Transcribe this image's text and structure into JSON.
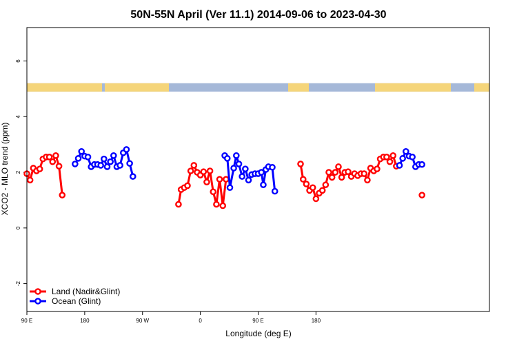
{
  "chart_data": {
    "type": "line",
    "title": "50N-55N April (Ver 11.1)   2014-09-06 to 2023-04-30",
    "xlabel": "Longitude (deg E)",
    "ylabel": "XCO2 - MLO trend (ppm)",
    "xlim": [
      90,
      450
    ],
    "ylim": [
      -3,
      7.2
    ],
    "x_ticks": [
      {
        "value": 90,
        "label": "90 E"
      },
      {
        "value": 135,
        "label": "180"
      },
      {
        "value": 180,
        "label": "90 W"
      },
      {
        "value": 225,
        "label": "0"
      },
      {
        "value": 270,
        "label": "90 E"
      },
      {
        "value": 315,
        "label": "180"
      }
    ],
    "x_tick_scale_note": "",
    "y_ticks": [
      -2,
      0,
      2,
      4,
      6
    ],
    "legend_position": "bottom-left",
    "land_ocean_strip": {
      "y_range": [
        4.9,
        5.2
      ],
      "land_color": "#f5d57a",
      "ocean_color": "#a5b8d8"
    },
    "series": [
      {
        "name": "Land (Nadir&Glint)",
        "color": "#ff0000",
        "segments": [
          [
            [
              90,
              1.95
            ],
            [
              92.5,
              1.72
            ],
            [
              95,
              2.15
            ],
            [
              97.5,
              2.05
            ],
            [
              100,
              2.12
            ],
            [
              102.5,
              2.48
            ],
            [
              105,
              2.55
            ],
            [
              107.5,
              2.55
            ],
            [
              110,
              2.38
            ],
            [
              112.5,
              2.6
            ],
            [
              115,
              2.22
            ],
            [
              117.5,
              1.18
            ]
          ],
          [
            [
              208,
              0.85
            ],
            [
              210,
              1.38
            ],
            [
              212.5,
              1.45
            ],
            [
              215,
              1.52
            ],
            [
              217.5,
              2.05
            ],
            [
              220,
              2.25
            ],
            [
              222.5,
              2.0
            ],
            [
              225,
              1.9
            ],
            [
              227.5,
              2.02
            ],
            [
              230,
              1.65
            ],
            [
              232.5,
              2.05
            ],
            [
              235,
              1.3
            ],
            [
              237.5,
              0.85
            ],
            [
              240,
              1.75
            ],
            [
              242.5,
              0.8
            ],
            [
              245,
              1.75
            ]
          ],
          [
            [
              303,
              2.3
            ],
            [
              305,
              1.75
            ],
            [
              307.5,
              1.58
            ],
            [
              310,
              1.35
            ],
            [
              312.5,
              1.45
            ],
            [
              315,
              1.05
            ],
            [
              317.5,
              1.25
            ],
            [
              320,
              1.35
            ],
            [
              322.5,
              1.55
            ],
            [
              325,
              2.0
            ],
            [
              327.5,
              1.82
            ],
            [
              330,
              2.0
            ],
            [
              332.5,
              2.2
            ],
            [
              335,
              1.82
            ],
            [
              337.5,
              2.0
            ],
            [
              340,
              2.02
            ],
            [
              342.5,
              1.85
            ],
            [
              345,
              1.95
            ],
            [
              347.5,
              1.88
            ],
            [
              350,
              1.95
            ],
            [
              352.5,
              1.95
            ],
            [
              355,
              1.72
            ],
            [
              357.5,
              2.15
            ],
            [
              360,
              2.05
            ],
            [
              362.5,
              2.12
            ],
            [
              365,
              2.48
            ],
            [
              367.5,
              2.55
            ],
            [
              370,
              2.55
            ],
            [
              372.5,
              2.38
            ],
            [
              375,
              2.6
            ],
            [
              377.5,
              2.22
            ]
          ],
          [
            [
              397.5,
              1.18
            ]
          ]
        ]
      },
      {
        "name": "Ocean (Glint)",
        "color": "#0000ff",
        "segments": [
          [
            [
              127.5,
              2.3
            ],
            [
              130,
              2.5
            ],
            [
              132.5,
              2.75
            ],
            [
              135,
              2.58
            ],
            [
              137.5,
              2.55
            ],
            [
              140,
              2.2
            ],
            [
              142.5,
              2.28
            ],
            [
              145,
              2.28
            ],
            [
              147.5,
              2.25
            ],
            [
              150,
              2.48
            ],
            [
              152.5,
              2.2
            ],
            [
              155,
              2.38
            ],
            [
              157.5,
              2.6
            ],
            [
              160,
              2.2
            ],
            [
              162.5,
              2.25
            ],
            [
              165,
              2.7
            ],
            [
              167.5,
              2.82
            ],
            [
              170,
              2.32
            ],
            [
              172.5,
              1.85
            ]
          ],
          [
            [
              244,
              2.6
            ],
            [
              246,
              2.5
            ],
            [
              248,
              1.45
            ],
            [
              251,
              2.15
            ],
            [
              253,
              2.6
            ],
            [
              255,
              2.3
            ],
            [
              257.5,
              1.85
            ],
            [
              260,
              2.12
            ],
            [
              262.5,
              1.72
            ],
            [
              265,
              1.92
            ],
            [
              267.5,
              1.95
            ],
            [
              270,
              1.95
            ],
            [
              272.5,
              2.0
            ],
            [
              274,
              1.55
            ],
            [
              276,
              2.1
            ],
            [
              278,
              2.2
            ],
            [
              281,
              2.18
            ],
            [
              283,
              1.32
            ]
          ],
          [
            [
              380,
              2.25
            ],
            [
              382.5,
              2.5
            ],
            [
              385,
              2.75
            ],
            [
              387.5,
              2.58
            ],
            [
              390,
              2.55
            ],
            [
              392.5,
              2.2
            ],
            [
              395,
              2.28
            ],
            [
              397.5,
              2.28
            ]
          ]
        ]
      }
    ]
  }
}
